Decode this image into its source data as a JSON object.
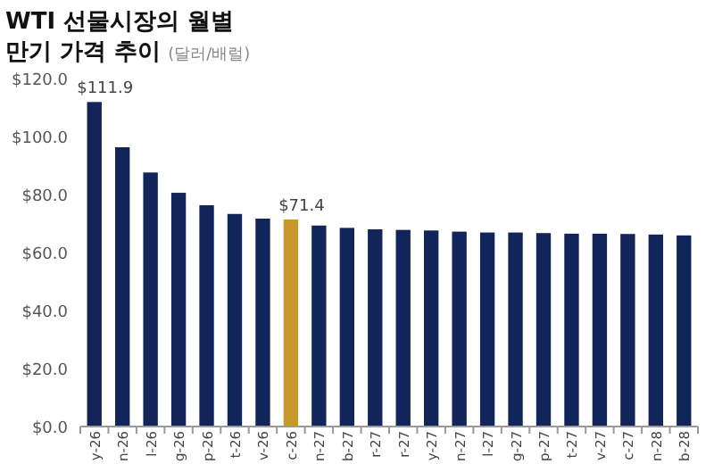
{
  "chart_data": {
    "type": "bar",
    "title": "WTI 선물시장의 월별 만기 가격 추이",
    "subtitle": "(달러/배럴)",
    "categories": [
      "y-26",
      "n-26",
      "l-26",
      "g-26",
      "p-26",
      "t-26",
      "v-26",
      "c-26",
      "n-27",
      "b-27",
      "r-27",
      "r-27",
      "y-27",
      "n-27",
      "l-27",
      "g-27",
      "p-27",
      "t-27",
      "v-27",
      "c-27",
      "n-28",
      "b-28"
    ],
    "values": [
      111.9,
      96.3,
      87.6,
      80.6,
      76.3,
      73.3,
      71.7,
      71.4,
      69.3,
      68.5,
      68.0,
      67.8,
      67.6,
      67.2,
      66.9,
      66.9,
      66.7,
      66.5,
      66.5,
      66.4,
      66.2,
      65.9
    ],
    "colors": [
      "#12255a",
      "#12255a",
      "#12255a",
      "#12255a",
      "#12255a",
      "#12255a",
      "#12255a",
      "#c8962a",
      "#12255a",
      "#12255a",
      "#12255a",
      "#12255a",
      "#12255a",
      "#12255a",
      "#12255a",
      "#12255a",
      "#12255a",
      "#12255a",
      "#12255a",
      "#12255a",
      "#12255a",
      "#12255a"
    ],
    "value_labels": [
      "$111.9",
      null,
      null,
      null,
      null,
      null,
      null,
      "$71.4",
      null,
      null,
      null,
      null,
      null,
      null,
      null,
      null,
      null,
      null,
      null,
      null,
      null,
      null
    ],
    "ylim": [
      0,
      120
    ],
    "yticks": [
      {
        "value": 0,
        "label": "$0.0"
      },
      {
        "value": 20,
        "label": "$20.0"
      },
      {
        "value": 40,
        "label": "$40.0"
      },
      {
        "value": 60,
        "label": "$60.0"
      },
      {
        "value": 80,
        "label": "$80.0"
      },
      {
        "value": 100,
        "label": "$100.0"
      },
      {
        "value": 120,
        "label": "$120.0"
      }
    ],
    "grid": false
  }
}
